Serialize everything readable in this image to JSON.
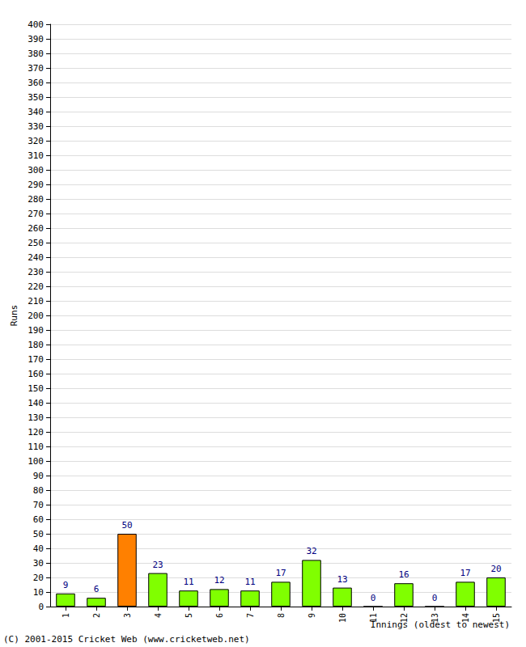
{
  "chart_data": {
    "type": "bar",
    "x_label": "Innings (oldest to newest)",
    "y_label": "Runs",
    "annotations": [
      "(C) 2001-2015 Cricket Web (www.cricketweb.net)"
    ],
    "categories": [
      "1",
      "2",
      "3",
      "4",
      "5",
      "6",
      "7",
      "8",
      "9",
      "10",
      "11",
      "12",
      "13",
      "14",
      "15"
    ],
    "values": [
      9,
      6,
      50,
      23,
      11,
      12,
      11,
      17,
      32,
      13,
      0,
      16,
      0,
      17,
      20
    ],
    "colors": [
      "#80ff00",
      "#80ff00",
      "#ff8000",
      "#80ff00",
      "#80ff00",
      "#80ff00",
      "#80ff00",
      "#80ff00",
      "#80ff00",
      "#80ff00",
      "#80ff00",
      "#80ff00",
      "#80ff00",
      "#80ff00",
      "#80ff00"
    ],
    "ylim": [
      0,
      400
    ],
    "yticks": [
      0,
      10,
      20,
      30,
      40,
      50,
      60,
      70,
      80,
      90,
      100,
      110,
      120,
      130,
      140,
      150,
      160,
      170,
      180,
      190,
      200,
      210,
      220,
      230,
      240,
      250,
      260,
      270,
      280,
      290,
      300,
      310,
      320,
      330,
      340,
      350,
      360,
      370,
      380,
      390,
      400
    ],
    "grid": true,
    "data_labels": true
  }
}
